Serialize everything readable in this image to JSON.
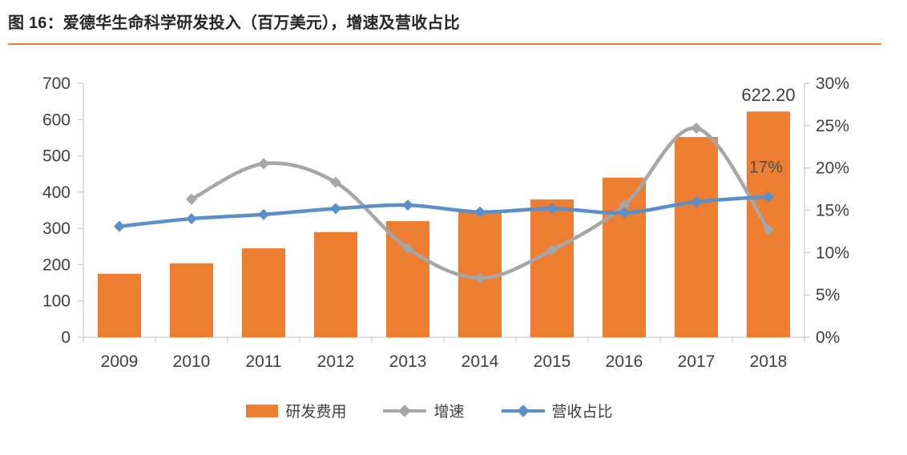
{
  "figure": {
    "title": "图 16：爱德华生命科学研发投入（百万美元），增速及营收占比"
  },
  "colors": {
    "accent": "#ED7D31",
    "axis": "#BFBFBF",
    "text": "#404040",
    "title": "#262626"
  },
  "chart_data": {
    "type": "combo-bar-line",
    "title": "爱德华生命科学研发投入（百万美元），增速及营收占比",
    "categories": [
      "2009",
      "2010",
      "2011",
      "2012",
      "2013",
      "2014",
      "2015",
      "2016",
      "2017",
      "2018"
    ],
    "series": [
      {
        "name": "研发费用",
        "type": "bar",
        "axis": "left",
        "color": "#ED7D31",
        "values": [
          175,
          204,
          245,
          290,
          320,
          345,
          380,
          440,
          552,
          622.2
        ]
      },
      {
        "name": "增速",
        "type": "line",
        "axis": "right",
        "color": "#A6A6A6",
        "values": [
          null,
          16.3,
          20.5,
          18.3,
          10.5,
          7.0,
          10.3,
          15.6,
          24.7,
          12.7
        ]
      },
      {
        "name": "营收占比",
        "type": "line",
        "axis": "right",
        "color": "#5B8FC9",
        "values": [
          13.1,
          14.0,
          14.5,
          15.2,
          15.6,
          14.8,
          15.2,
          14.7,
          16.0,
          16.6
        ]
      }
    ],
    "left_axis": {
      "min": 0,
      "max": 700,
      "step": 100,
      "tick_labels": [
        "0",
        "100",
        "200",
        "300",
        "400",
        "500",
        "600",
        "700"
      ]
    },
    "right_axis": {
      "min": 0,
      "max": 30,
      "step": 5,
      "tick_labels": [
        "0%",
        "5%",
        "10%",
        "15%",
        "20%",
        "25%",
        "30%"
      ]
    },
    "annotations": [
      {
        "text": "622.20",
        "series": 0,
        "category_index": 9
      },
      {
        "text": "17%",
        "series": 2,
        "category_index": 9
      }
    ],
    "legend": [
      "研发费用",
      "增速",
      "营收占比"
    ],
    "legend_position": "bottom",
    "grid": false
  }
}
